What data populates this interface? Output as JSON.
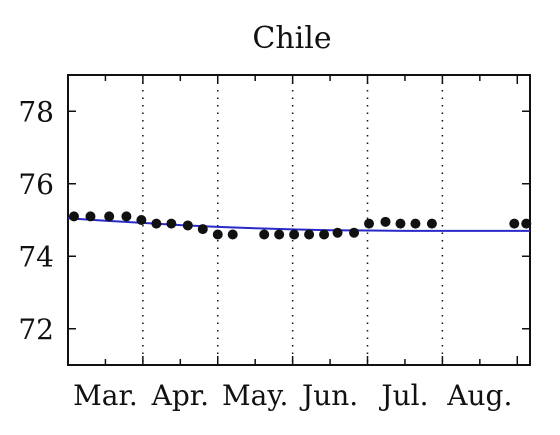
{
  "chart_data": {
    "type": "scatter",
    "title": "Chile",
    "xlabel": "",
    "ylabel": "",
    "x_tick_labels": [
      "Mar.",
      "Apr.",
      "May.",
      "Jun.",
      "Jul.",
      "Aug."
    ],
    "y_ticks": [
      72,
      74,
      76,
      78
    ],
    "ylim": [
      71,
      79
    ],
    "xlim": [
      0,
      6.17
    ],
    "grid": "vertical dotted lines at month boundaries",
    "series": [
      {
        "kind": "points",
        "color": "#111111",
        "x": [
          0.08,
          0.3,
          0.55,
          0.78,
          0.98,
          1.18,
          1.38,
          1.6,
          1.8,
          2.0,
          2.2,
          2.62,
          2.82,
          3.02,
          3.22,
          3.42,
          3.6,
          3.82,
          4.02,
          4.24,
          4.44,
          4.64,
          4.86,
          5.96,
          6.12
        ],
        "y": [
          75.1,
          75.1,
          75.1,
          75.1,
          75.0,
          74.9,
          74.9,
          74.85,
          74.75,
          74.6,
          74.6,
          74.6,
          74.6,
          74.6,
          74.6,
          74.6,
          74.65,
          74.65,
          74.9,
          74.95,
          74.9,
          74.9,
          74.9,
          74.9,
          74.9
        ]
      },
      {
        "kind": "trend-line",
        "color": "#2a2ac8",
        "x": [
          0.0,
          0.5,
          1.0,
          1.5,
          2.0,
          2.5,
          3.0,
          3.5,
          4.0,
          4.5,
          5.0,
          5.5,
          6.17
        ],
        "y": [
          75.05,
          74.98,
          74.92,
          74.86,
          74.81,
          74.77,
          74.74,
          74.72,
          74.71,
          74.7,
          74.7,
          74.7,
          74.7
        ]
      }
    ]
  }
}
